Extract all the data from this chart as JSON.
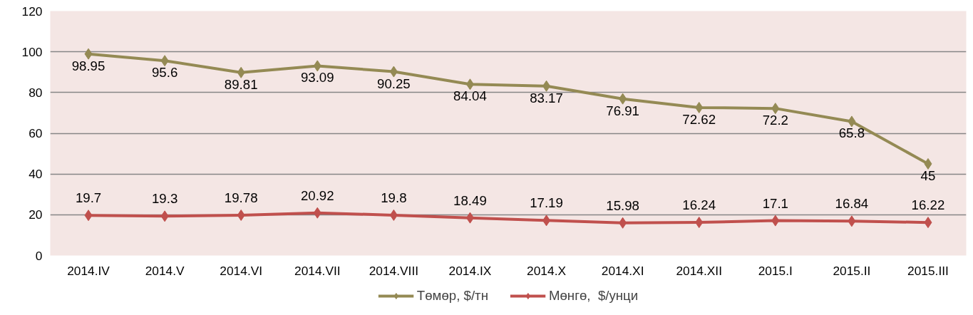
{
  "chart_data": {
    "type": "line",
    "categories": [
      "2014.IV",
      "2014.V",
      "2014.VI",
      "2014.VII",
      "2014.VIII",
      "2014.IX",
      "2014.X",
      "2014.XI",
      "2014.XII",
      "2015.I",
      "2015.II",
      "2015.III"
    ],
    "series": [
      {
        "name": "Төмөр, $/тн",
        "color": "#948a54",
        "values": [
          98.95,
          95.6,
          89.81,
          93.09,
          90.25,
          84.04,
          83.17,
          76.91,
          72.62,
          72.2,
          65.8,
          45
        ]
      },
      {
        "name": "Мөнгө,  $/унци",
        "color": "#c0504d",
        "values": [
          19.7,
          19.3,
          19.78,
          20.92,
          19.8,
          18.49,
          17.19,
          15.98,
          16.24,
          17.1,
          16.84,
          16.22
        ]
      }
    ],
    "ylim": [
      0,
      120
    ],
    "yticks": [
      0,
      20,
      40,
      60,
      80,
      100,
      120
    ],
    "grid": "y",
    "legend": "bottom",
    "marker": "diamond",
    "line_style": "solid",
    "data_labels": true
  }
}
